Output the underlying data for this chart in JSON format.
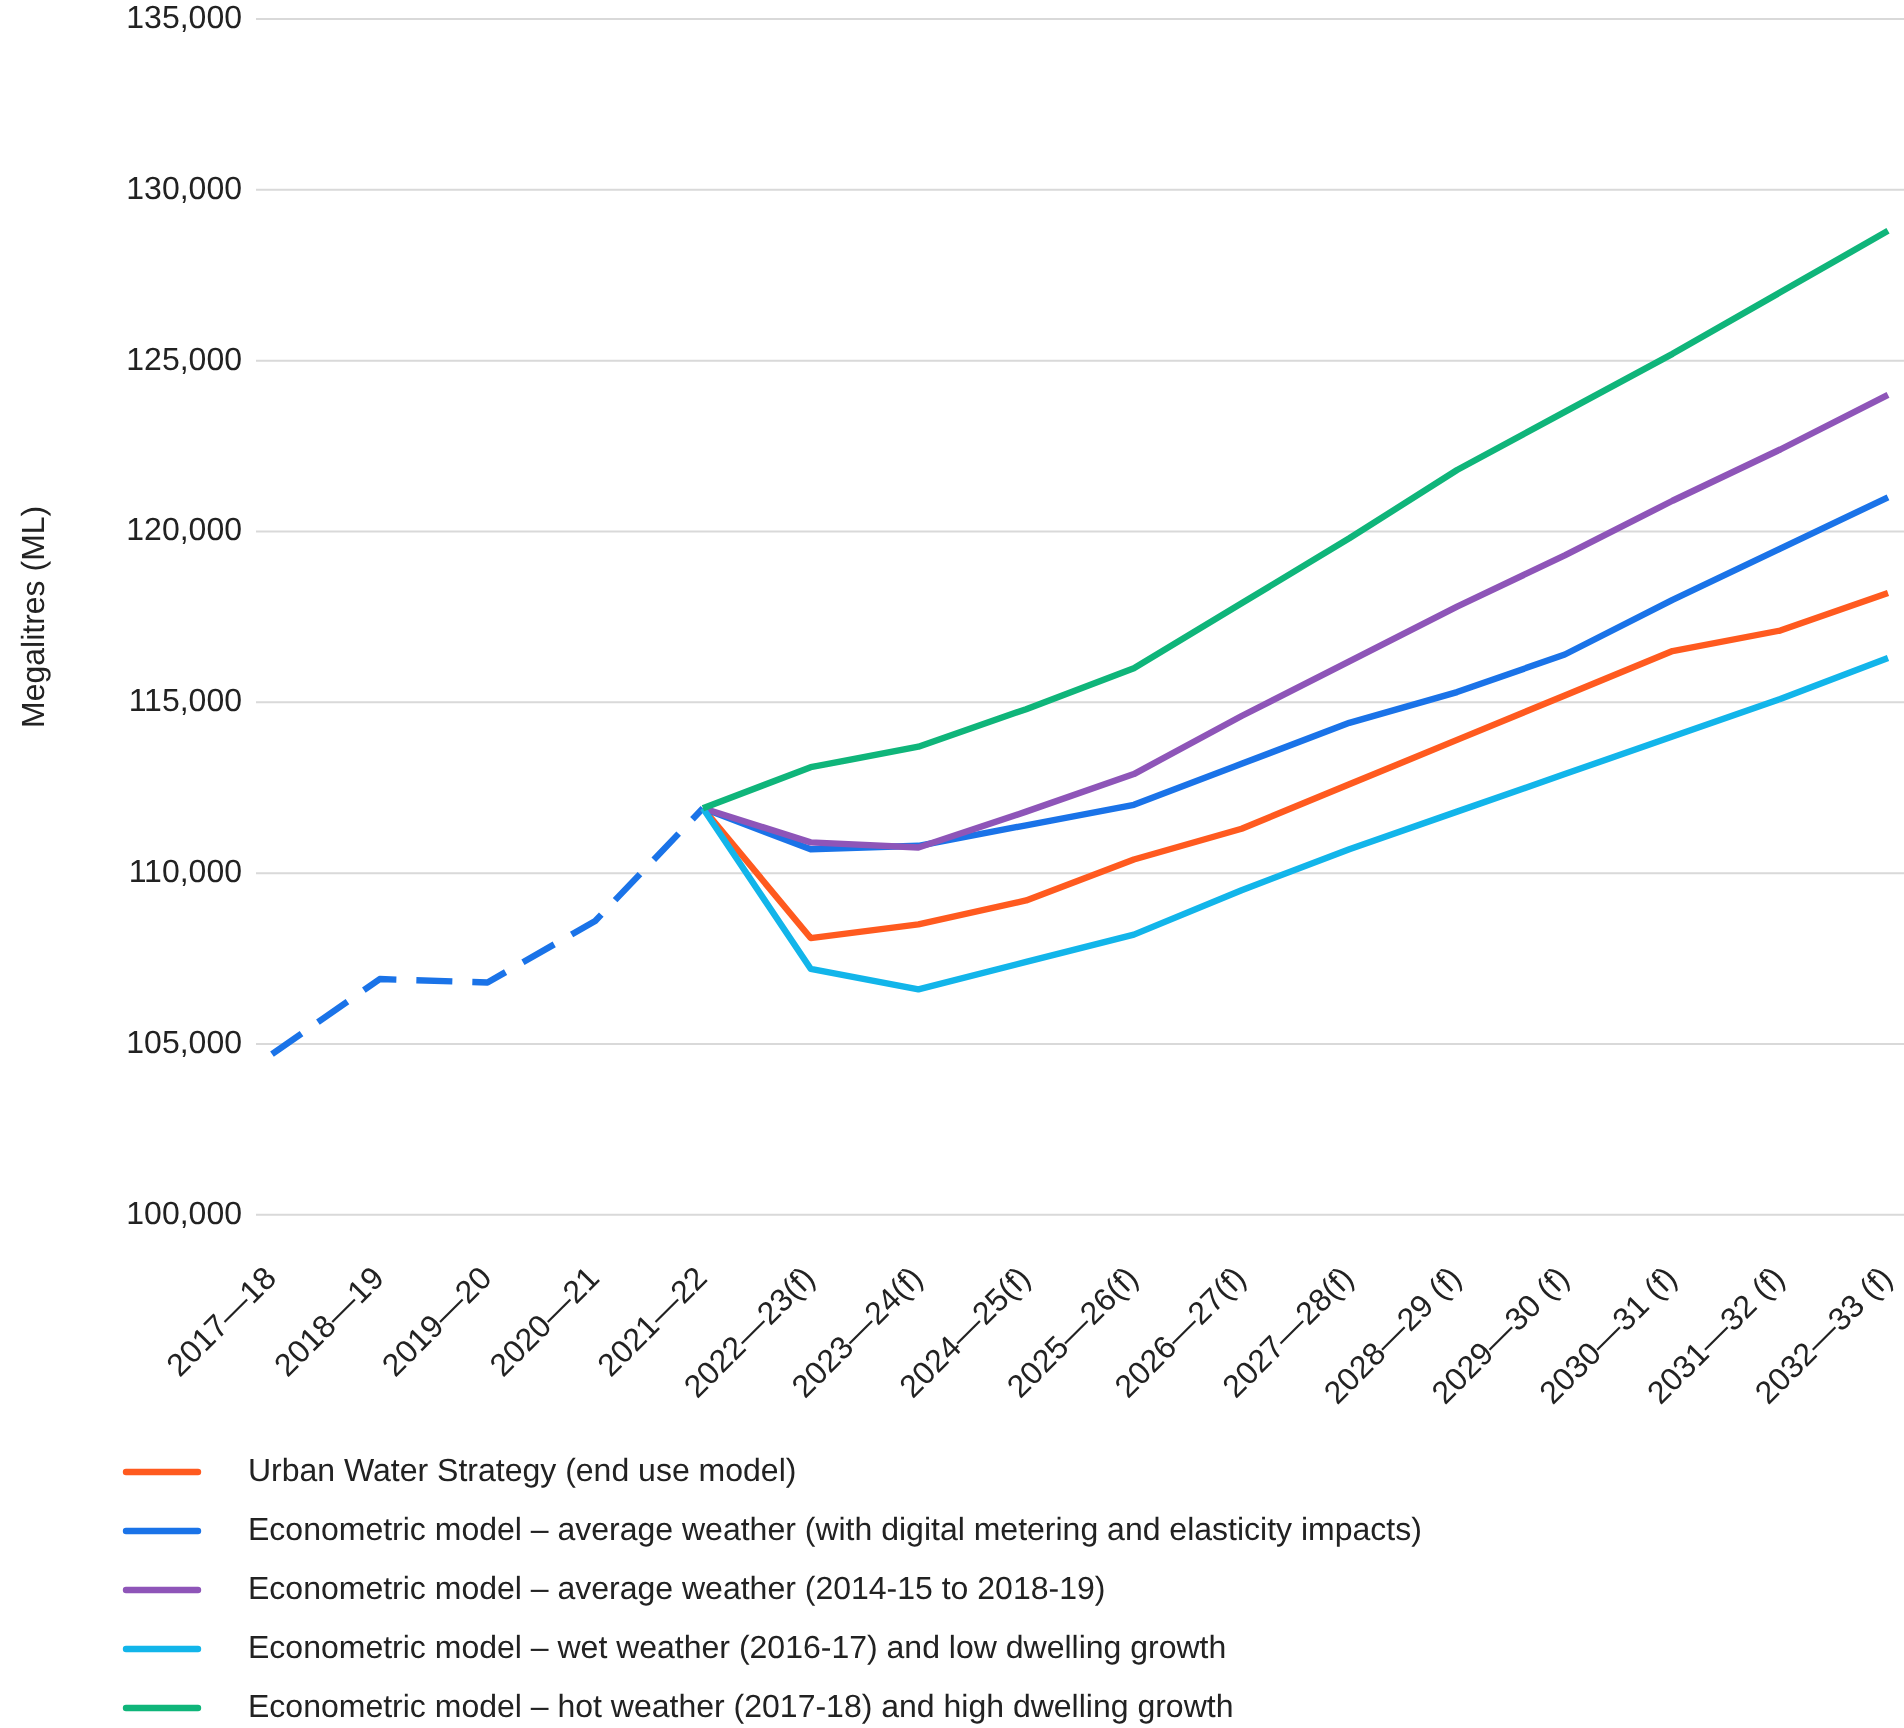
{
  "chart_data": {
    "type": "line",
    "ylabel": "Megalitres (ML)",
    "categories": [
      "2017—18",
      "2018—19",
      "2019—20",
      "2020—21",
      "2021—22",
      "2022—23(f)",
      "2023—24(f)",
      "2024—25(f)",
      "2025—26(f)",
      "2026—27(f)",
      "2027—28(f)",
      "2028—29 (f)",
      "2029—30 (f)",
      "2030—31 (f)",
      "2031—32 (f)",
      "2032—33 (f)"
    ],
    "series": [
      {
        "color": "#1a73e8",
        "line_style": "dashed",
        "values": [
          104700,
          106900,
          106800,
          108600,
          111900,
          null,
          null,
          null,
          null,
          null,
          null,
          null,
          null,
          null,
          null,
          null
        ]
      },
      {
        "name": "Urban Water Strategy (end use model)",
        "color": "#ff5a1f",
        "values": [
          null,
          null,
          null,
          null,
          111900,
          108100,
          108500,
          109200,
          110400,
          111300,
          112600,
          113900,
          115200,
          116500,
          117100,
          118200
        ]
      },
      {
        "name": "Econometric model – average weather (with digital metering and elasticity impacts)",
        "color": "#1a73e8",
        "values": [
          null,
          null,
          null,
          null,
          111900,
          110700,
          110800,
          111400,
          112000,
          113200,
          114400,
          115300,
          116400,
          118000,
          119500,
          121000
        ]
      },
      {
        "name": "Econometric model – average weather (2014-15 to 2018-19)",
        "color": "#8e55b8",
        "values": [
          null,
          null,
          null,
          null,
          111900,
          110900,
          110750,
          111800,
          112900,
          114600,
          116200,
          117800,
          119300,
          120900,
          122400,
          124000
        ]
      },
      {
        "name": "Econometric model – wet weather (2016-17) and low dwelling growth",
        "color": "#12b5ea",
        "values": [
          null,
          null,
          null,
          null,
          111900,
          107200,
          106600,
          107400,
          108200,
          109500,
          110700,
          111800,
          112900,
          114000,
          115100,
          116300
        ]
      },
      {
        "name": "Econometric model – hot weather (2017-18) and high dwelling growth",
        "color": "#0fb57a",
        "values": [
          null,
          null,
          null,
          null,
          111900,
          113100,
          113700,
          114800,
          116000,
          117900,
          119800,
          121800,
          123500,
          125200,
          127000,
          128800
        ]
      }
    ],
    "ylim": [
      100000,
      135000
    ],
    "yticks": [
      {
        "value": 100000,
        "label": "100,000"
      },
      {
        "value": 105000,
        "label": "105,000"
      },
      {
        "value": 110000,
        "label": "110,000"
      },
      {
        "value": 115000,
        "label": "115,000"
      },
      {
        "value": 120000,
        "label": "120,000"
      },
      {
        "value": 125000,
        "label": "125,000"
      },
      {
        "value": 130000,
        "label": "130,000"
      },
      {
        "value": 135000,
        "label": "135,000"
      }
    ],
    "grid": "y",
    "legend": "bottom"
  }
}
